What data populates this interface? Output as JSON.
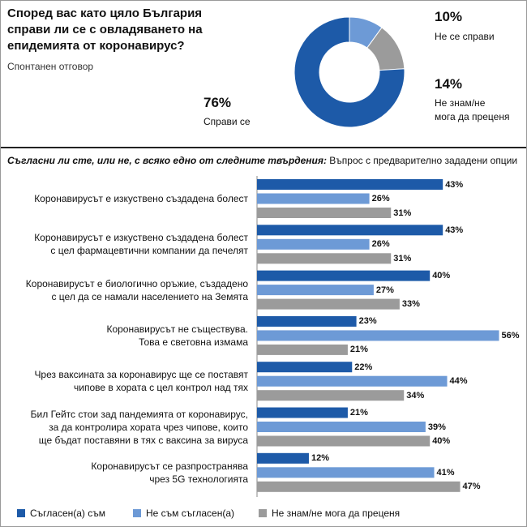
{
  "chart_data": [
    {
      "type": "pie",
      "title": "Според вас като цяло България\nсправи ли се с овладяването на\nепидемията от коронавирус?",
      "subtitle": "Спонтанен отговор",
      "categories": [
        "Не се справи",
        "Не знам/не\nмога да преценя",
        "Справи се"
      ],
      "values": [
        10,
        14,
        76
      ],
      "value_labels": [
        "10%",
        "14%",
        "76%"
      ],
      "colors": [
        "#6d9ad6",
        "#9b9b9b",
        "#1d5aa8"
      ],
      "donut": true
    },
    {
      "type": "bar",
      "orientation": "horizontal",
      "title": "Съгласни ли сте, или не, с всяко едно от следните твърдения:",
      "subtitle": "Въпрос с предварително зададени опции",
      "categories": [
        "Коронавирусът е изкуствено създадена болест",
        "Коронавирусът е изкуствено създадена болест\nс цел фармацевтични компании да печелят",
        "Коронавирусът е биологично оръжие, създадено\nс цел да се намали населението на Земята",
        "Коронавирусът не съществува.\nТова е световна измама",
        "Чрез ваксината за коронавирус ще се поставят\nчипове в хората с цел контрол над тях",
        "Бил Гейтс стои зад пандемията от коронавирус,\nза да контролира хората чрез чипове, които\nще бъдат поставяни в тях с ваксина за вируса",
        "Коронавирусът се разпространява\nчрез 5G технологията"
      ],
      "series": [
        {
          "name": "Съгласен(а) съм",
          "color": "#1d5aa8",
          "values": [
            43,
            43,
            40,
            23,
            22,
            21,
            12
          ],
          "value_labels": [
            "43%",
            "43%",
            "40%",
            "23%",
            "22%",
            "21%",
            "12%"
          ]
        },
        {
          "name": "Не съм съгласен(а)",
          "color": "#6d9ad6",
          "values": [
            26,
            26,
            27,
            56,
            44,
            39,
            41
          ],
          "value_labels": [
            "26%",
            "26%",
            "27%",
            "56%",
            "44%",
            "39%",
            "41%"
          ]
        },
        {
          "name": "Не знам/не мога да преценя",
          "color": "#9b9b9b",
          "values": [
            31,
            31,
            33,
            21,
            34,
            40,
            47
          ],
          "value_labels": [
            "31%",
            "31%",
            "33%",
            "21%",
            "34%",
            "40%",
            "47%"
          ]
        }
      ]
    }
  ]
}
